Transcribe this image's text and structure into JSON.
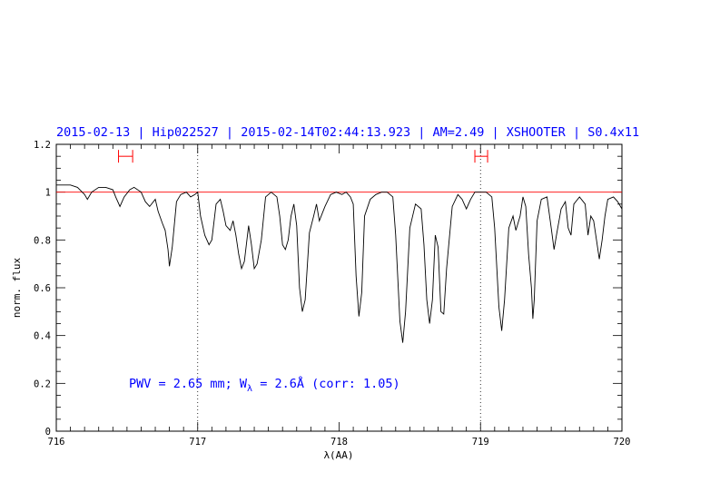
{
  "chart_data": {
    "type": "line",
    "title": "2015-02-13 | Hip022527 | 2015-02-14T02:44:13.923 | AM=2.49 | XSHOOTER | S0.4x11",
    "xlabel": "λ(AA)",
    "ylabel": "norm. flux",
    "xlim": [
      716,
      720
    ],
    "ylim": [
      0,
      1.2
    ],
    "x_ticks": [
      "716",
      "717",
      "718",
      "719",
      "720"
    ],
    "y_ticks": [
      "0",
      "0.2",
      "0.4",
      "0.6",
      "0.8",
      "1",
      "1.2"
    ],
    "annotation": {
      "prefix": "PWV = 2.65 mm; W",
      "subscript": "λ",
      "suffix": " = 2.6Å (corr: 1.05)"
    },
    "reference_line": {
      "y": 1.0,
      "color": "#ff0000"
    },
    "dotted_markers_x": [
      717.0,
      719.0
    ],
    "intervals": [
      {
        "from": 716.44,
        "to": 716.54,
        "y": 1.15,
        "color": "#ff0000"
      },
      {
        "from": 718.96,
        "to": 719.05,
        "y": 1.15,
        "color": "#ff0000"
      }
    ],
    "series": [
      {
        "color": "#000000",
        "points": [
          [
            716.0,
            1.03
          ],
          [
            716.05,
            1.03
          ],
          [
            716.1,
            1.03
          ],
          [
            716.15,
            1.02
          ],
          [
            716.2,
            0.99
          ],
          [
            716.22,
            0.97
          ],
          [
            716.25,
            1.0
          ],
          [
            716.3,
            1.02
          ],
          [
            716.35,
            1.02
          ],
          [
            716.4,
            1.01
          ],
          [
            716.42,
            0.98
          ],
          [
            716.45,
            0.94
          ],
          [
            716.48,
            0.98
          ],
          [
            716.52,
            1.01
          ],
          [
            716.55,
            1.02
          ],
          [
            716.6,
            1.0
          ],
          [
            716.63,
            0.96
          ],
          [
            716.66,
            0.94
          ],
          [
            716.7,
            0.97
          ],
          [
            716.72,
            0.92
          ],
          [
            716.75,
            0.87
          ],
          [
            716.77,
            0.84
          ],
          [
            716.79,
            0.76
          ],
          [
            716.8,
            0.69
          ],
          [
            716.82,
            0.77
          ],
          [
            716.85,
            0.96
          ],
          [
            716.88,
            0.99
          ],
          [
            716.92,
            1.0
          ],
          [
            716.95,
            0.98
          ],
          [
            716.98,
            0.99
          ],
          [
            717.0,
            1.0
          ],
          [
            717.02,
            0.9
          ],
          [
            717.05,
            0.82
          ],
          [
            717.08,
            0.78
          ],
          [
            717.1,
            0.8
          ],
          [
            717.13,
            0.95
          ],
          [
            717.16,
            0.97
          ],
          [
            717.18,
            0.92
          ],
          [
            717.2,
            0.86
          ],
          [
            717.23,
            0.84
          ],
          [
            717.25,
            0.88
          ],
          [
            717.27,
            0.82
          ],
          [
            717.29,
            0.74
          ],
          [
            717.31,
            0.68
          ],
          [
            717.33,
            0.71
          ],
          [
            717.36,
            0.86
          ],
          [
            717.38,
            0.78
          ],
          [
            717.4,
            0.68
          ],
          [
            717.42,
            0.7
          ],
          [
            717.45,
            0.8
          ],
          [
            717.48,
            0.98
          ],
          [
            717.52,
            1.0
          ],
          [
            717.56,
            0.98
          ],
          [
            717.58,
            0.9
          ],
          [
            717.6,
            0.78
          ],
          [
            717.62,
            0.76
          ],
          [
            717.64,
            0.8
          ],
          [
            717.66,
            0.9
          ],
          [
            717.68,
            0.95
          ],
          [
            717.7,
            0.86
          ],
          [
            717.72,
            0.6
          ],
          [
            717.74,
            0.5
          ],
          [
            717.76,
            0.55
          ],
          [
            717.79,
            0.83
          ],
          [
            717.82,
            0.9
          ],
          [
            717.84,
            0.95
          ],
          [
            717.86,
            0.88
          ],
          [
            717.9,
            0.94
          ],
          [
            717.94,
            0.99
          ],
          [
            717.98,
            1.0
          ],
          [
            718.02,
            0.99
          ],
          [
            718.05,
            1.0
          ],
          [
            718.08,
            0.98
          ],
          [
            718.1,
            0.95
          ],
          [
            718.12,
            0.65
          ],
          [
            718.14,
            0.48
          ],
          [
            718.16,
            0.58
          ],
          [
            718.18,
            0.9
          ],
          [
            718.22,
            0.97
          ],
          [
            718.26,
            0.99
          ],
          [
            718.3,
            1.0
          ],
          [
            718.34,
            1.0
          ],
          [
            718.38,
            0.98
          ],
          [
            718.4,
            0.82
          ],
          [
            718.43,
            0.46
          ],
          [
            718.45,
            0.37
          ],
          [
            718.47,
            0.5
          ],
          [
            718.5,
            0.85
          ],
          [
            718.54,
            0.95
          ],
          [
            718.58,
            0.93
          ],
          [
            718.6,
            0.78
          ],
          [
            718.62,
            0.55
          ],
          [
            718.64,
            0.45
          ],
          [
            718.66,
            0.55
          ],
          [
            718.68,
            0.82
          ],
          [
            718.7,
            0.77
          ],
          [
            718.72,
            0.5
          ],
          [
            718.74,
            0.49
          ],
          [
            718.76,
            0.68
          ],
          [
            718.8,
            0.94
          ],
          [
            718.84,
            0.99
          ],
          [
            718.87,
            0.97
          ],
          [
            718.9,
            0.93
          ],
          [
            718.93,
            0.97
          ],
          [
            718.96,
            1.0
          ],
          [
            719.0,
            1.0
          ],
          [
            719.04,
            1.0
          ],
          [
            719.08,
            0.98
          ],
          [
            719.1,
            0.85
          ],
          [
            719.13,
            0.52
          ],
          [
            719.15,
            0.42
          ],
          [
            719.17,
            0.55
          ],
          [
            719.2,
            0.85
          ],
          [
            719.23,
            0.9
          ],
          [
            719.25,
            0.84
          ],
          [
            719.28,
            0.9
          ],
          [
            719.3,
            0.98
          ],
          [
            719.32,
            0.94
          ],
          [
            719.34,
            0.74
          ],
          [
            719.36,
            0.6
          ],
          [
            719.37,
            0.47
          ],
          [
            719.38,
            0.55
          ],
          [
            719.4,
            0.88
          ],
          [
            719.43,
            0.97
          ],
          [
            719.47,
            0.98
          ],
          [
            719.5,
            0.85
          ],
          [
            719.52,
            0.76
          ],
          [
            719.54,
            0.83
          ],
          [
            719.57,
            0.93
          ],
          [
            719.6,
            0.96
          ],
          [
            719.62,
            0.85
          ],
          [
            719.64,
            0.82
          ],
          [
            719.66,
            0.95
          ],
          [
            719.7,
            0.98
          ],
          [
            719.74,
            0.95
          ],
          [
            719.76,
            0.82
          ],
          [
            719.78,
            0.9
          ],
          [
            719.8,
            0.88
          ],
          [
            719.82,
            0.8
          ],
          [
            719.84,
            0.72
          ],
          [
            719.86,
            0.8
          ],
          [
            719.88,
            0.9
          ],
          [
            719.9,
            0.97
          ],
          [
            719.94,
            0.98
          ],
          [
            719.97,
            0.96
          ],
          [
            720.0,
            0.93
          ]
        ]
      }
    ],
    "grid": false
  }
}
